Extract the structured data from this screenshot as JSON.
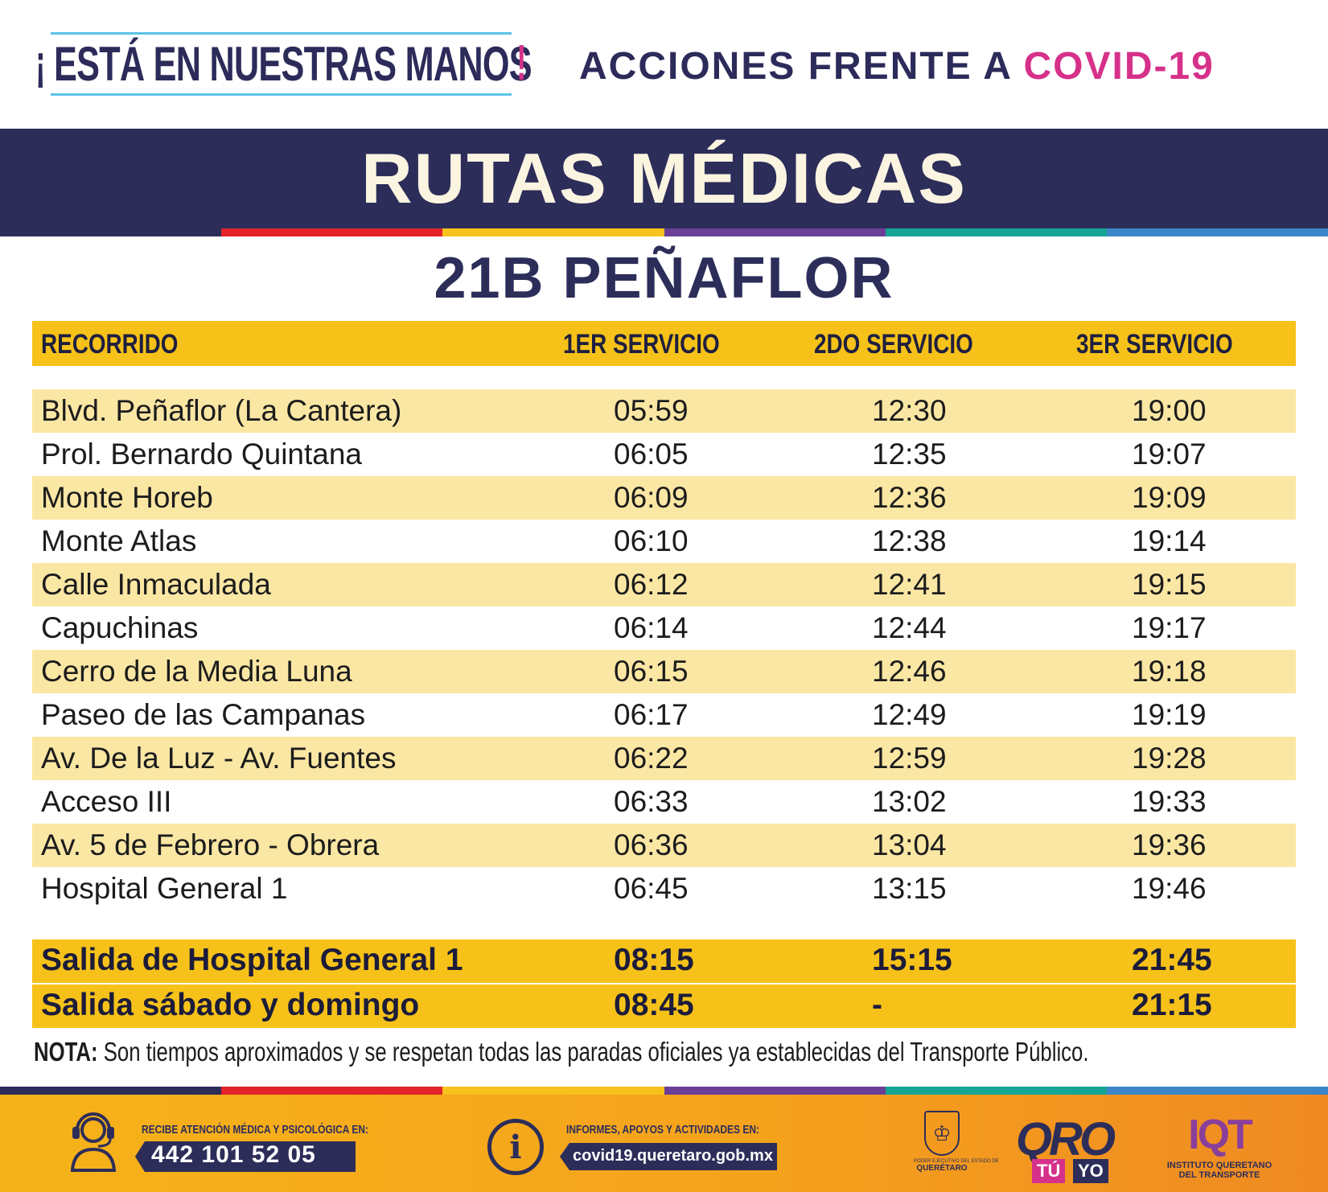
{
  "header": {
    "slogan_open": "¡",
    "slogan": "ESTÁ EN NUESTRAS MANOS",
    "slogan_close": "!",
    "actions_prefix": "ACCIONES FRENTE A",
    "actions_highlight": "COVID-19"
  },
  "title": "RUTAS MÉDICAS",
  "route": "21B PEÑAFLOR",
  "table": {
    "headers": [
      "RECORRIDO",
      "1ER SERVICIO",
      "2DO SERVICIO",
      "3ER SERVICIO"
    ],
    "rows": [
      [
        "Blvd. Peñaflor (La Cantera)",
        "05:59",
        "12:30",
        "19:00"
      ],
      [
        "Prol. Bernardo Quintana",
        "06:05",
        "12:35",
        "19:07"
      ],
      [
        "Monte Horeb",
        "06:09",
        "12:36",
        "19:09"
      ],
      [
        "Monte Atlas",
        "06:10",
        "12:38",
        "19:14"
      ],
      [
        "Calle Inmaculada",
        "06:12",
        "12:41",
        "19:15"
      ],
      [
        "Capuchinas",
        "06:14",
        "12:44",
        "19:17"
      ],
      [
        "Cerro de la Media Luna",
        "06:15",
        "12:46",
        "19:18"
      ],
      [
        "Paseo de las Campanas",
        "06:17",
        "12:49",
        "19:19"
      ],
      [
        "Av. De la Luz - Av. Fuentes",
        "06:22",
        "12:59",
        "19:28"
      ],
      [
        "Acceso III",
        "06:33",
        "13:02",
        "19:33"
      ],
      [
        "Av. 5 de Febrero - Obrera",
        "06:36",
        "13:04",
        "19:36"
      ],
      [
        "Hospital General 1",
        "06:45",
        "13:15",
        "19:46"
      ]
    ],
    "departures": [
      [
        "Salida de Hospital General 1",
        "08:15",
        "15:15",
        "21:45"
      ],
      [
        "Salida sábado y domingo",
        "08:45",
        "-",
        "21:15"
      ]
    ]
  },
  "note": {
    "label": "NOTA:",
    "text": "Son tiempos aproximados y se respetan todas las paradas oficiales ya establecidas del Transporte Público."
  },
  "footer": {
    "help_label": "RECIBE ATENCIÓN MÉDICA Y PSICOLÓGICA EN:",
    "phone": "442 101 52 05",
    "info_label": "INFORMES, APOYOS Y ACTIVIDADES EN:",
    "website": "covid19.queretaro.gob.mx",
    "info_glyph": "i",
    "gov_small": "PODER EJECUTIVO DEL ESTADO DE",
    "gov_name": "QUERÉTARO",
    "oro_word": "QRO",
    "oro_tu": "TÚ",
    "oro_yo": "YO",
    "iqt_word": "IQT",
    "iqt_line1": "INSTITUTO QUERETANO",
    "iqt_line2": "DEL TRANSPORTE"
  },
  "colors": {
    "navy": "#2c2d59",
    "pink": "#d6318a",
    "yellow": "#f6c219",
    "row_tint": "#fbe7a4",
    "cream": "#fbf4e1"
  },
  "icons": [
    "headset-icon",
    "info-icon",
    "seal-icon"
  ]
}
